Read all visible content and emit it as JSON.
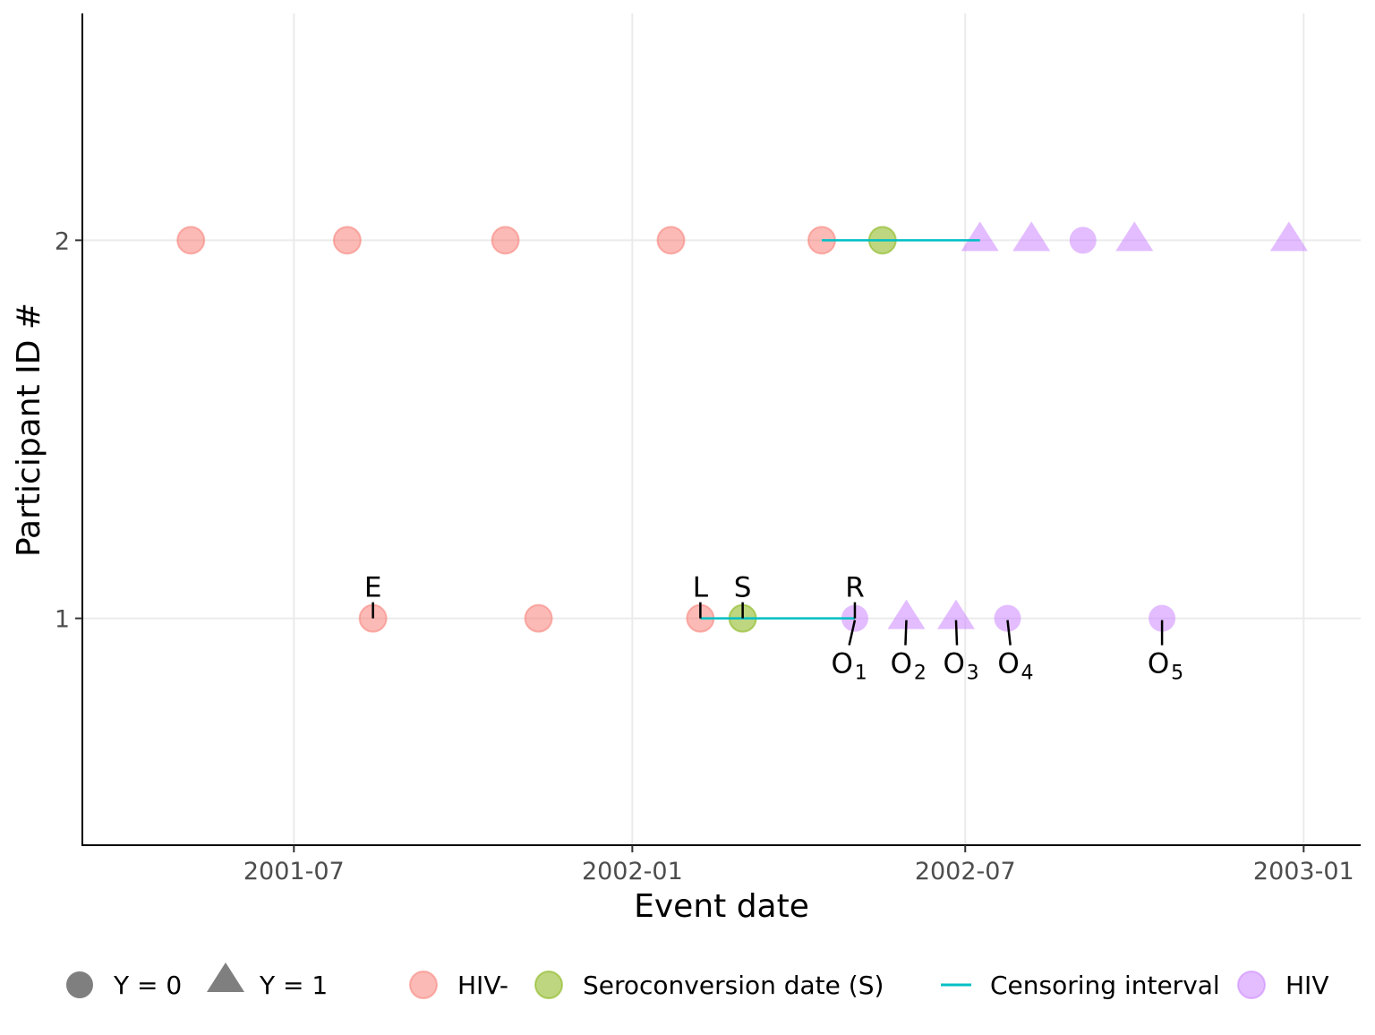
{
  "chart_data": {
    "type": "scatter",
    "title": "",
    "xlabel": "Event date",
    "ylabel": "Participant ID #",
    "xlim": [
      "2001-03-08",
      "2003-02-01"
    ],
    "ylim": [
      0.4,
      2.6
    ],
    "x_ticks": [
      {
        "date": "2001-07-01",
        "label": "2001-07"
      },
      {
        "date": "2002-01-01",
        "label": "2002-01"
      },
      {
        "date": "2002-07-01",
        "label": "2002-07"
      },
      {
        "date": "2003-01-01",
        "label": "2003-01"
      }
    ],
    "y_ticks": [
      {
        "value": 1,
        "label": "1"
      },
      {
        "value": 2,
        "label": "2"
      }
    ],
    "grid": true,
    "colors": {
      "HIV-": "#F8766D",
      "Seroconversion": "#7CAE00",
      "HIV+": "#C77CFF",
      "interval": "#00BFC4"
    },
    "points": [
      {
        "id": 2,
        "date": "2001-05-06",
        "status": "HIV-",
        "Y": 0
      },
      {
        "id": 2,
        "date": "2001-07-30",
        "status": "HIV-",
        "Y": 0
      },
      {
        "id": 2,
        "date": "2001-10-24",
        "status": "HIV-",
        "Y": 0
      },
      {
        "id": 2,
        "date": "2002-01-22",
        "status": "HIV-",
        "Y": 0
      },
      {
        "id": 2,
        "date": "2002-04-14",
        "status": "HIV-",
        "Y": 0
      },
      {
        "id": 2,
        "date": "2002-05-17",
        "status": "Seroconversion",
        "Y": 0
      },
      {
        "id": 2,
        "date": "2002-07-09",
        "status": "HIV+",
        "Y": 1
      },
      {
        "id": 2,
        "date": "2002-08-06",
        "status": "HIV+",
        "Y": 1
      },
      {
        "id": 2,
        "date": "2002-09-03",
        "status": "HIV+",
        "Y": 0
      },
      {
        "id": 2,
        "date": "2002-10-01",
        "status": "HIV+",
        "Y": 1
      },
      {
        "id": 2,
        "date": "2002-12-24",
        "status": "HIV+",
        "Y": 1
      },
      {
        "id": 1,
        "date": "2001-08-13",
        "status": "HIV-",
        "Y": 0
      },
      {
        "id": 1,
        "date": "2001-11-11",
        "status": "HIV-",
        "Y": 0
      },
      {
        "id": 1,
        "date": "2002-02-07",
        "status": "HIV-",
        "Y": 0
      },
      {
        "id": 1,
        "date": "2002-03-02",
        "status": "Seroconversion",
        "Y": 0
      },
      {
        "id": 1,
        "date": "2002-05-02",
        "status": "HIV+",
        "Y": 0
      },
      {
        "id": 1,
        "date": "2002-05-30",
        "status": "HIV+",
        "Y": 1
      },
      {
        "id": 1,
        "date": "2002-06-26",
        "status": "HIV+",
        "Y": 1
      },
      {
        "id": 1,
        "date": "2002-07-24",
        "status": "HIV+",
        "Y": 0
      },
      {
        "id": 1,
        "date": "2002-10-16",
        "status": "HIV+",
        "Y": 0
      }
    ],
    "intervals": [
      {
        "id": 2,
        "start": "2002-04-14",
        "end": "2002-07-09"
      },
      {
        "id": 1,
        "start": "2002-02-07",
        "end": "2002-05-02"
      }
    ],
    "annotations": [
      {
        "text": "E",
        "sub": "",
        "date": "2001-08-13",
        "pos": "above",
        "tilt": 0
      },
      {
        "text": "L",
        "sub": "",
        "date": "2002-02-07",
        "pos": "above",
        "tilt": 0
      },
      {
        "text": "S",
        "sub": "",
        "date": "2002-03-02",
        "pos": "above",
        "tilt": 0
      },
      {
        "text": "R",
        "sub": "",
        "date": "2002-05-02",
        "pos": "above",
        "tilt": 0
      },
      {
        "text": "O",
        "sub": "1",
        "date": "2002-05-02",
        "pos": "below",
        "tilt": -12
      },
      {
        "text": "O",
        "sub": "2",
        "date": "2002-05-30",
        "pos": "below",
        "tilt": -2
      },
      {
        "text": "O",
        "sub": "3",
        "date": "2002-06-26",
        "pos": "below",
        "tilt": 2
      },
      {
        "text": "O",
        "sub": "4",
        "date": "2002-07-24",
        "pos": "below",
        "tilt": 6
      },
      {
        "text": "O",
        "sub": "5",
        "date": "2002-10-16",
        "pos": "below",
        "tilt": 0
      }
    ],
    "legend": {
      "placement": "bottom",
      "shape_items": [
        {
          "label": "Y = 0",
          "shape": "circle"
        },
        {
          "label": "Y = 1",
          "shape": "triangle"
        }
      ],
      "color_items": [
        {
          "label": "HIV-",
          "kind": "point",
          "key": "HIV-"
        },
        {
          "label": "Seroconversion date (S)",
          "kind": "point",
          "key": "Seroconversion"
        },
        {
          "label": "Censoring interval",
          "kind": "line",
          "key": "interval"
        },
        {
          "label": "HIV",
          "kind": "point",
          "key": "HIV+"
        }
      ]
    }
  }
}
